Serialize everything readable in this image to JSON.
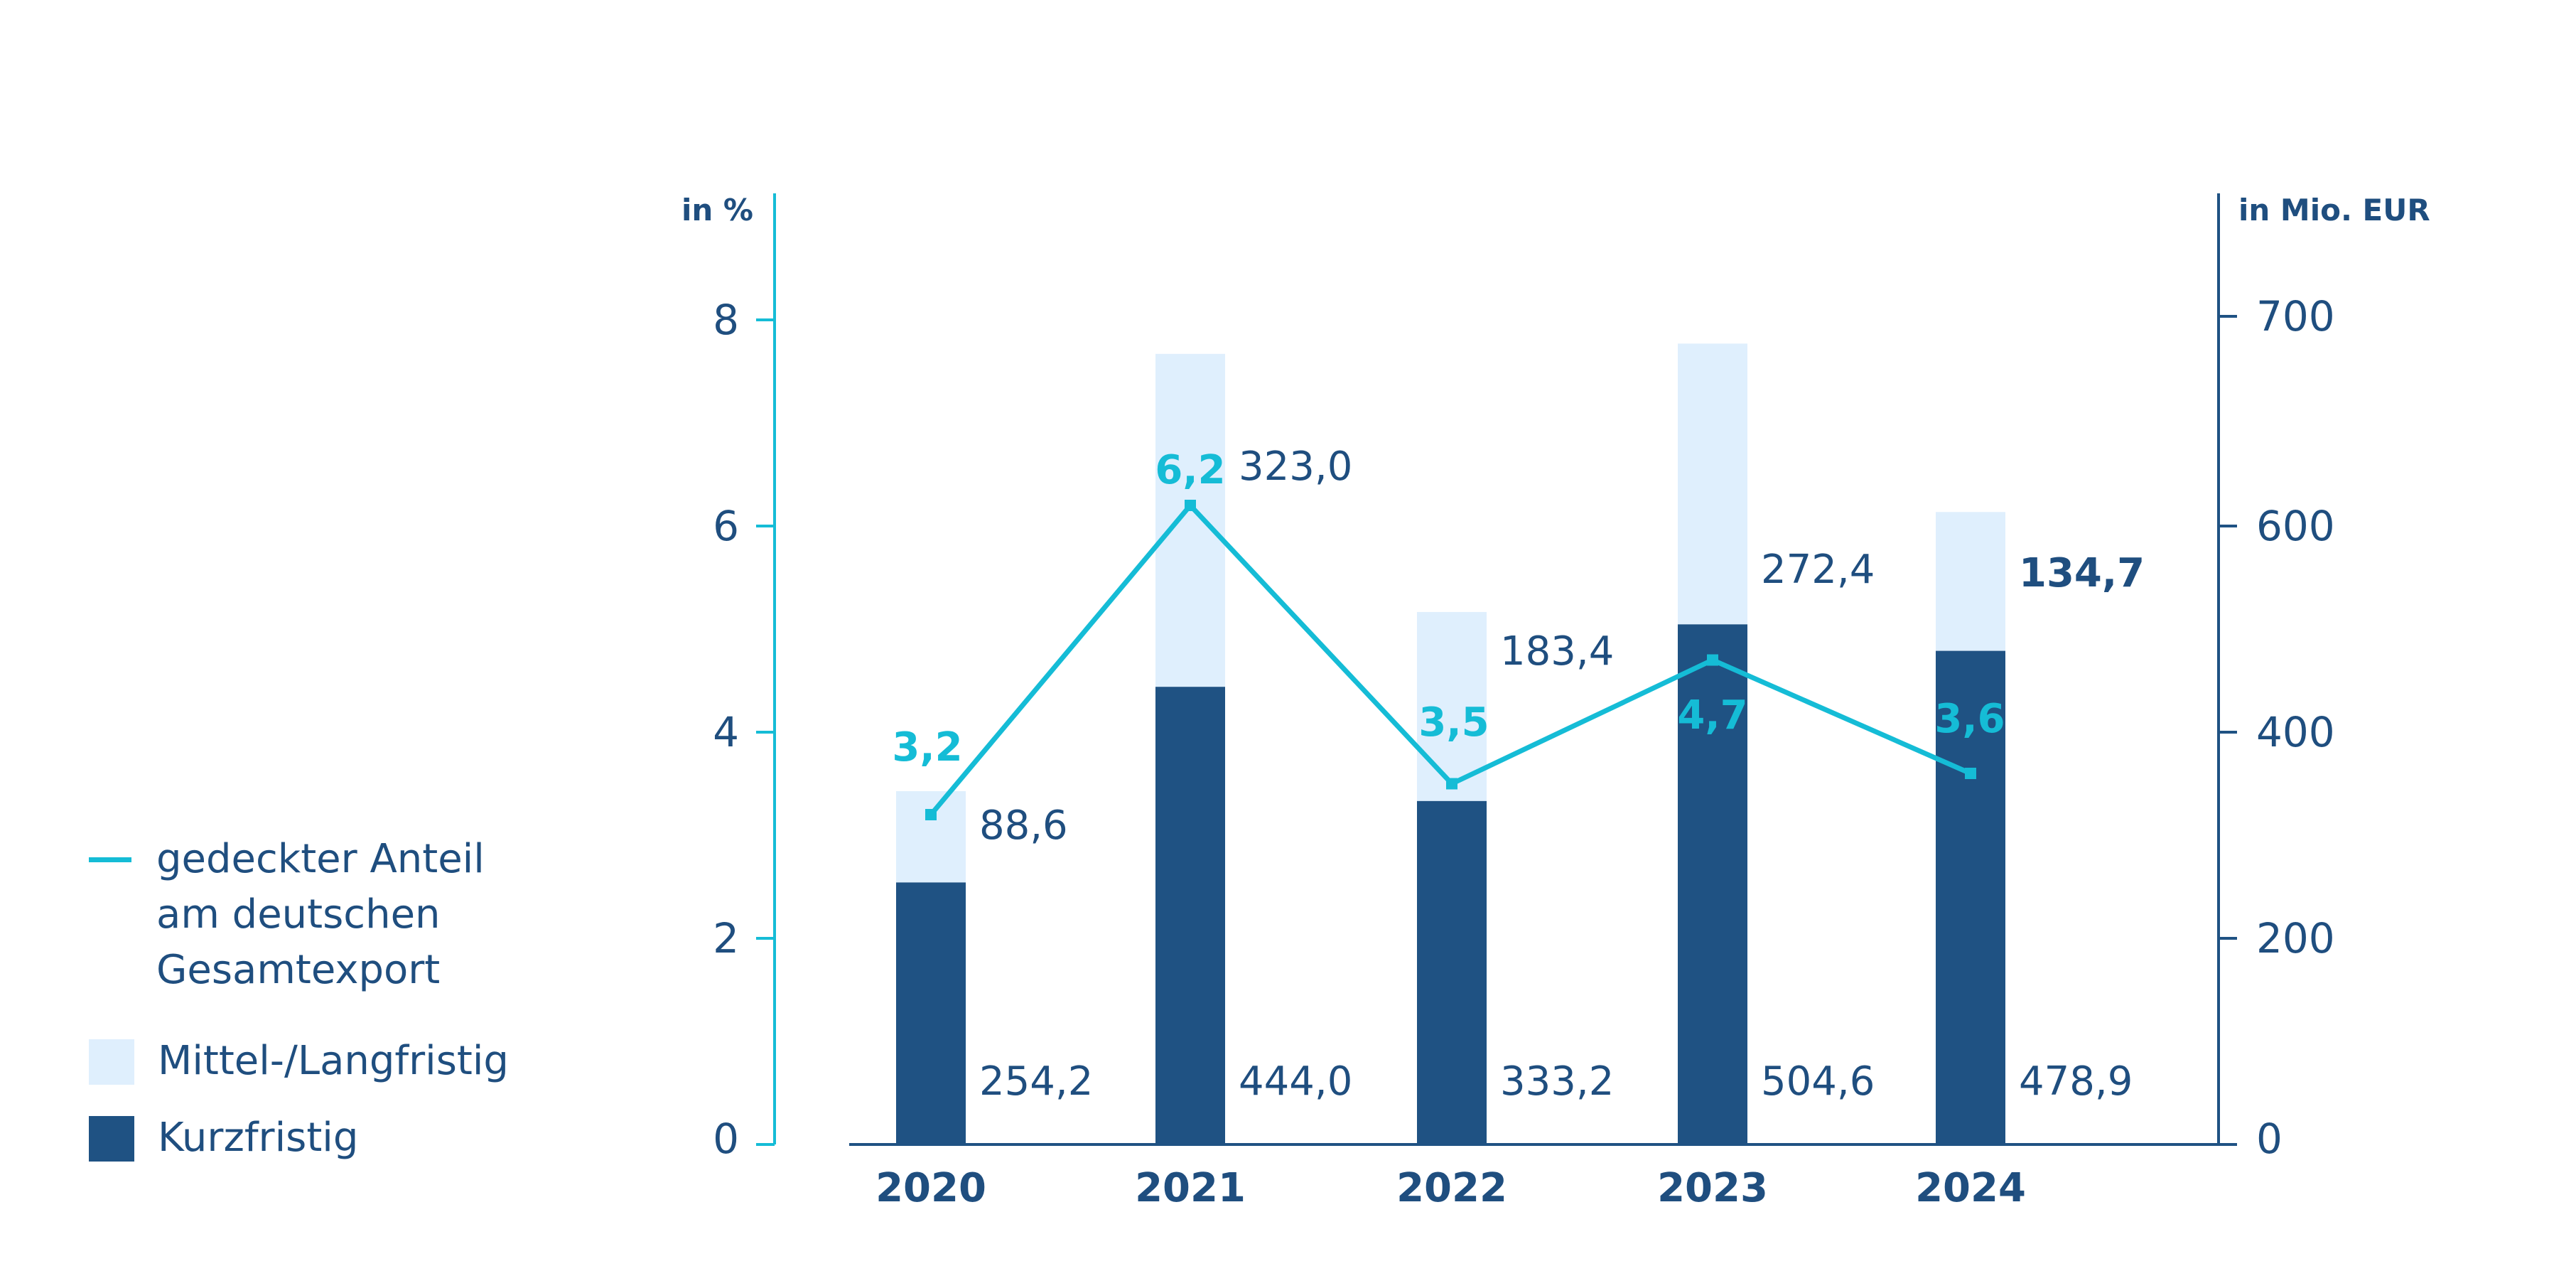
{
  "chart_data": {
    "type": "bar",
    "stacked": true,
    "categories": [
      "2020",
      "2021",
      "2022",
      "2023",
      "2024"
    ],
    "series": [
      {
        "name": "Kurzfristig",
        "kind": "bar",
        "axis": "right",
        "color": "#1f5283",
        "values": [
          254.2,
          444.0,
          333.2,
          504.6,
          478.9
        ],
        "labels": [
          "254,2",
          "444,0",
          "333,2",
          "504,6",
          "478,9"
        ]
      },
      {
        "name": "Mittel-/Langfristig",
        "kind": "bar",
        "axis": "right",
        "color": "#dfeffd",
        "values": [
          88.6,
          323.0,
          183.4,
          272.4,
          134.7
        ],
        "labels": [
          "88,6",
          "323,0",
          "183,4",
          "272,4",
          "134,7"
        ]
      },
      {
        "name": "gedeckter Anteil am deutschen Gesamtexport",
        "kind": "line",
        "axis": "left",
        "color": "#15bcd6",
        "values": [
          3.2,
          6.2,
          3.5,
          4.7,
          3.6
        ],
        "labels": [
          "3,2",
          "6,2",
          "3,5",
          "4,7",
          "3,6"
        ]
      }
    ],
    "left_axis": {
      "label": "in %",
      "range": [
        0,
        8
      ],
      "ticks": [
        "0",
        "2",
        "4",
        "6",
        "8"
      ]
    },
    "right_axis": {
      "label": "in Mio. EUR",
      "range": [
        0,
        800
      ],
      "ticks": [
        "0",
        "200",
        "400",
        "600",
        "700"
      ]
    },
    "legend_position": "left",
    "colors": {
      "dark_blue": "#1f5283",
      "light_blue": "#dfeffd",
      "cyan": "#15bcd6",
      "text": "#1f4e7f"
    }
  },
  "legend": {
    "line_label_lines": [
      "gedeckter Anteil",
      "am deutschen",
      "Gesamtexport"
    ],
    "mid_long_label": "Mittel-/Langfristig",
    "short_label": "Kurzfristig"
  }
}
